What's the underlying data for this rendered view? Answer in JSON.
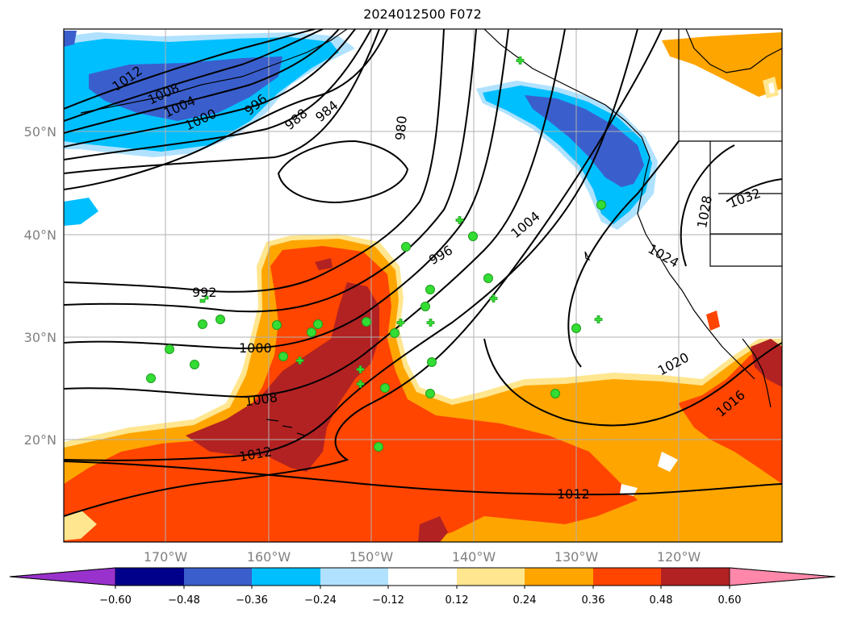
{
  "title": "2024012500 F072",
  "map": {
    "lat_labels": [
      "50°N",
      "40°N",
      "30°N",
      "20°N"
    ],
    "lon_labels": [
      "170°W",
      "160°W",
      "150°W",
      "140°W",
      "130°W",
      "120°W"
    ],
    "isobar_labels": [
      "1012",
      "1008",
      "1004",
      "1000",
      "996",
      "988",
      "984",
      "980",
      "1004",
      "996",
      "992",
      "1000",
      "1008",
      "1012",
      "1012",
      "1020",
      "1016",
      "1024",
      "1028",
      "1032"
    ]
  },
  "colorbar": {
    "ticks": [
      "−0.60",
      "−0.48",
      "−0.36",
      "−0.24",
      "−0.12",
      "0.12",
      "0.24",
      "0.36",
      "0.48",
      "0.60"
    ],
    "colors": [
      "#9932cc",
      "#00008b",
      "#3a5fcd",
      "#00bfff",
      "#b0e2ff",
      "#ffffff",
      "#ffe68f",
      "#ffa500",
      "#ff4500",
      "#b22222",
      "#ff88aa"
    ]
  },
  "colors": {
    "blue_dark": "#3a5fcd",
    "blue_mid": "#00bfff",
    "blue_light": "#b0e2ff",
    "yellow": "#ffe68f",
    "orange": "#ffa500",
    "red_orange": "#ff4500",
    "dark_red": "#b22222",
    "marker": "#33dd33"
  }
}
